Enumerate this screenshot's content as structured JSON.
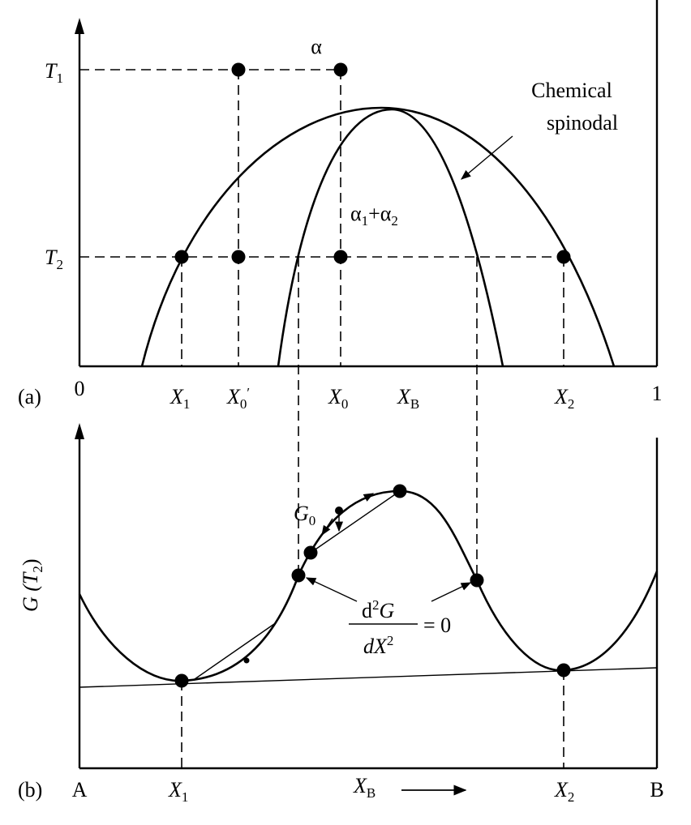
{
  "panel_a": {
    "tag": "(a)",
    "phase": "α",
    "two_phase": [
      "α",
      "1",
      "+",
      "α",
      "2"
    ],
    "spinodal_label": [
      "Chemical",
      "spinodal"
    ],
    "y_labels": [
      [
        "T",
        "1"
      ],
      [
        "T",
        "2"
      ]
    ],
    "x_labels": {
      "origin": "0",
      "x1": [
        "X",
        "1"
      ],
      "x0_prime": [
        "X",
        "0",
        "′"
      ],
      "x0": [
        "X",
        "0"
      ],
      "xb": [
        "X",
        "B"
      ],
      "x2": [
        "X",
        "2"
      ],
      "end": "1"
    }
  },
  "panel_b": {
    "tag": "(b)",
    "y_label": [
      "G (",
      "T",
      "2",
      ")"
    ],
    "g0": [
      "G",
      "0"
    ],
    "condition": {
      "numerator": [
        "d",
        "2",
        "G"
      ],
      "denominator": [
        "dX",
        "2"
      ],
      "equals": "= 0"
    },
    "x_labels": {
      "start": "A",
      "x1": [
        "X",
        "1"
      ],
      "xb": [
        "X",
        "B"
      ],
      "x2": [
        "X",
        "2"
      ],
      "end": "B"
    }
  }
}
